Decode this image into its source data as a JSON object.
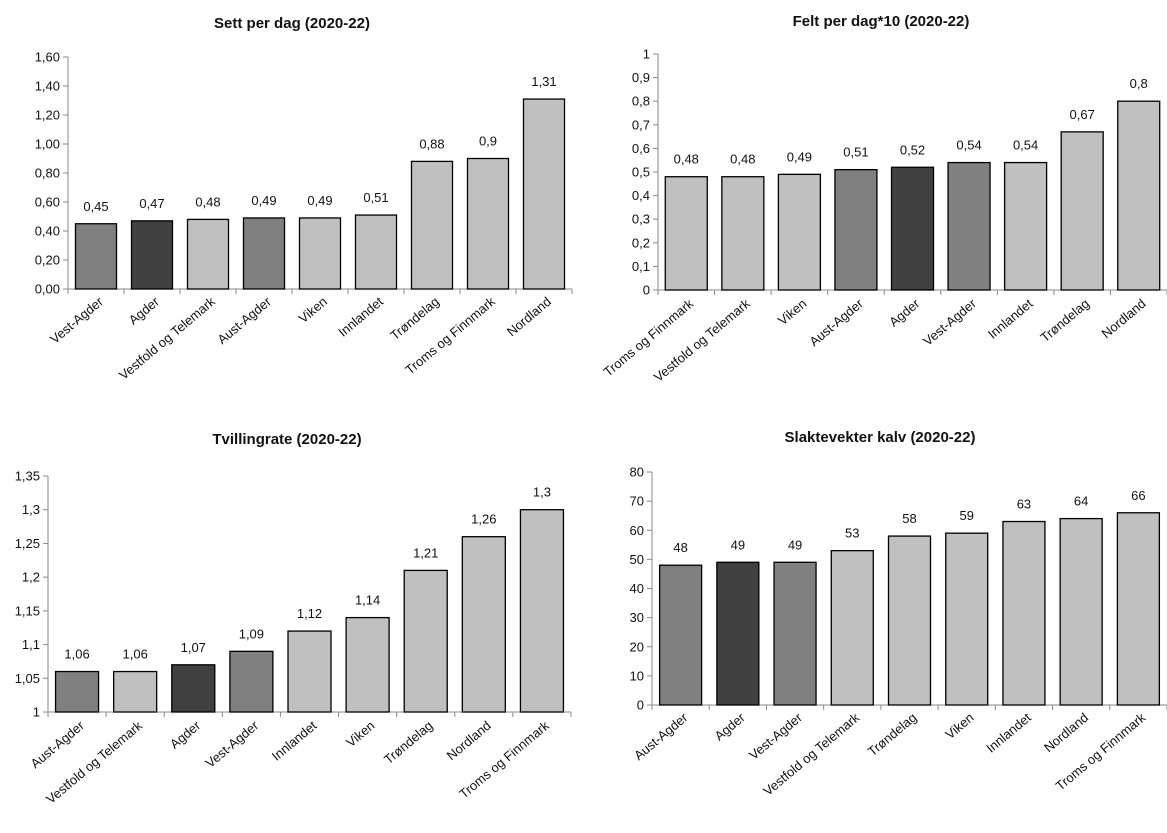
{
  "chart_data": [
    {
      "type": "bar",
      "title": "Sett per dag (2020-22)",
      "xlabel": "",
      "ylabel": "",
      "categories": [
        "Vest-Agder",
        "Agder",
        "Vestfold og Telemark",
        "Aust-Agder",
        "Viken",
        "Innlandet",
        "Trøndelag",
        "Troms og Finnmark",
        "Nordland"
      ],
      "values": [
        0.45,
        0.47,
        0.48,
        0.49,
        0.49,
        0.51,
        0.88,
        0.9,
        1.31
      ],
      "value_labels": [
        "0,45",
        "0,47",
        "0,48",
        "0,49",
        "0,49",
        "0,51",
        "0,88",
        "0,9",
        "1,31"
      ],
      "bar_colors": [
        "#808080",
        "#404040",
        "#c0c0c0",
        "#808080",
        "#c0c0c0",
        "#c0c0c0",
        "#c0c0c0",
        "#c0c0c0",
        "#c0c0c0"
      ],
      "ylim": [
        0,
        1.6
      ],
      "yticks": [
        0,
        0.2,
        0.4,
        0.6,
        0.8,
        1.0,
        1.2,
        1.4,
        1.6
      ],
      "ytick_labels": [
        "0,00",
        "0,20",
        "0,40",
        "0,60",
        "0,80",
        "1,00",
        "1,20",
        "1,40",
        "1,60"
      ],
      "grid": false,
      "legend": "none"
    },
    {
      "type": "bar",
      "title": "Felt per dag*10 (2020-22)",
      "xlabel": "",
      "ylabel": "",
      "categories": [
        "Troms og Finnmark",
        "Vestfold og Telemark",
        "Viken",
        "Aust-Agder",
        "Agder",
        "Vest-Agder",
        "Innlandet",
        "Trøndelag",
        "Nordland"
      ],
      "values": [
        0.48,
        0.48,
        0.49,
        0.51,
        0.52,
        0.54,
        0.54,
        0.67,
        0.8
      ],
      "value_labels": [
        "0,48",
        "0,48",
        "0,49",
        "0,51",
        "0,52",
        "0,54",
        "0,54",
        "0,67",
        "0,8"
      ],
      "bar_colors": [
        "#c0c0c0",
        "#c0c0c0",
        "#c0c0c0",
        "#808080",
        "#404040",
        "#808080",
        "#c0c0c0",
        "#c0c0c0",
        "#c0c0c0"
      ],
      "ylim": [
        0,
        1
      ],
      "yticks": [
        0,
        0.1,
        0.2,
        0.3,
        0.4,
        0.5,
        0.6,
        0.7,
        0.8,
        0.9,
        1
      ],
      "ytick_labels": [
        "0",
        "0,1",
        "0,2",
        "0,3",
        "0,4",
        "0,5",
        "0,6",
        "0,7",
        "0,8",
        "0,9",
        "1"
      ],
      "grid": false,
      "legend": "none"
    },
    {
      "type": "bar",
      "title": "Tvillingrate (2020-22)",
      "xlabel": "",
      "ylabel": "",
      "categories": [
        "Aust-Agder",
        "Vestfold og Telemark",
        "Agder",
        "Vest-Agder",
        "Innlandet",
        "Viken",
        "Trøndelag",
        "Nordland",
        "Troms og Finnmark"
      ],
      "values": [
        1.06,
        1.06,
        1.07,
        1.09,
        1.12,
        1.14,
        1.21,
        1.26,
        1.3
      ],
      "value_labels": [
        "1,06",
        "1,06",
        "1,07",
        "1,09",
        "1,12",
        "1,14",
        "1,21",
        "1,26",
        "1,3"
      ],
      "bar_colors": [
        "#808080",
        "#c0c0c0",
        "#404040",
        "#808080",
        "#c0c0c0",
        "#c0c0c0",
        "#c0c0c0",
        "#c0c0c0",
        "#c0c0c0"
      ],
      "ylim": [
        1,
        1.35
      ],
      "yticks": [
        1,
        1.05,
        1.1,
        1.15,
        1.2,
        1.25,
        1.3,
        1.35
      ],
      "ytick_labels": [
        "1",
        "1,05",
        "1,1",
        "1,15",
        "1,2",
        "1,25",
        "1,3",
        "1,35"
      ],
      "grid": false,
      "legend": "none"
    },
    {
      "type": "bar",
      "title": "Slaktevekter kalv (2020-22)",
      "xlabel": "",
      "ylabel": "",
      "categories": [
        "Aust-Agder",
        "Agder",
        "Vest-Agder",
        "Vestfold og Telemark",
        "Trøndelag",
        "Viken",
        "Innlandet",
        "Nordland",
        "Troms og Finnmark"
      ],
      "values": [
        48,
        49,
        49,
        53,
        58,
        59,
        63,
        64,
        66
      ],
      "value_labels": [
        "48",
        "49",
        "49",
        "53",
        "58",
        "59",
        "63",
        "64",
        "66"
      ],
      "bar_colors": [
        "#808080",
        "#404040",
        "#808080",
        "#c0c0c0",
        "#c0c0c0",
        "#c0c0c0",
        "#c0c0c0",
        "#c0c0c0",
        "#c0c0c0"
      ],
      "ylim": [
        0,
        80
      ],
      "yticks": [
        0,
        10,
        20,
        30,
        40,
        50,
        60,
        70,
        80
      ],
      "ytick_labels": [
        "0",
        "10",
        "20",
        "30",
        "40",
        "50",
        "60",
        "70",
        "80"
      ],
      "grid": false,
      "legend": "none"
    }
  ]
}
